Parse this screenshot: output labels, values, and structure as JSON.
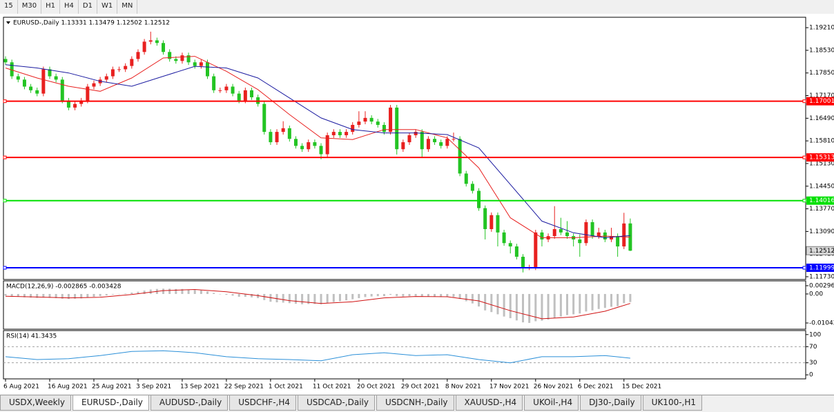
{
  "toolbar": {
    "buttons": [
      "15",
      "M30",
      "H1",
      "H4",
      "D1",
      "W1",
      "MN"
    ]
  },
  "chart_data": [
    {
      "type": "candlestick",
      "title": "EURUSD-,Daily  1.13331 1.13479 1.12502 1.12512",
      "colors": {
        "up": "#e8201f",
        "down": "#23c423"
      },
      "xlim": [
        -0.33,
        126.8
      ],
      "xticks": [
        {
          "value": 0,
          "label": "6 Aug 2021"
        },
        {
          "value": 7,
          "label": "16 Aug 2021"
        },
        {
          "value": 14,
          "label": "25 Aug 2021"
        },
        {
          "value": 21,
          "label": "3 Sep 2021"
        },
        {
          "value": 28,
          "label": "13 Sep 2021"
        },
        {
          "value": 35,
          "label": "22 Sep 2021"
        },
        {
          "value": 42,
          "label": "1 Oct 2021"
        },
        {
          "value": 49,
          "label": "11 Oct 2021"
        },
        {
          "value": 56,
          "label": "20 Oct 2021"
        },
        {
          "value": 63,
          "label": "29 Oct 2021"
        },
        {
          "value": 70,
          "label": "8 Nov 2021"
        },
        {
          "value": 77,
          "label": "17 Nov 2021"
        },
        {
          "value": 84,
          "label": "26 Nov 2021"
        },
        {
          "value": 91,
          "label": "6 Dec 2021"
        },
        {
          "value": 98,
          "label": "15 Dec 2021"
        }
      ],
      "ylim": [
        1.11647,
        1.19523
      ],
      "yticks": [
        {
          "value": 1.1921,
          "label": "1.19210"
        },
        {
          "value": 1.1853,
          "label": "1.18530"
        },
        {
          "value": 1.1785,
          "label": "1.17850"
        },
        {
          "value": 1.1717,
          "label": "1.17170"
        },
        {
          "value": 1.1649,
          "label": "1.16490"
        },
        {
          "value": 1.1581,
          "label": "1.15810"
        },
        {
          "value": 1.1513,
          "label": "1.15130"
        },
        {
          "value": 1.1445,
          "label": "1.14450"
        },
        {
          "value": 1.1377,
          "label": "1.13770"
        },
        {
          "value": 1.1309,
          "label": "1.13090"
        },
        {
          "value": 1.1241,
          "label": "1.12410"
        },
        {
          "value": 1.1173,
          "label": "1.11730"
        }
      ],
      "ohlc": [
        [
          1.1827,
          1.1835,
          1.1809,
          1.1817
        ],
        [
          1.1817,
          1.1825,
          1.1767,
          1.1775
        ],
        [
          1.1775,
          1.1783,
          1.1757,
          1.1765
        ],
        [
          1.1765,
          1.1773,
          1.1736,
          1.1744
        ],
        [
          1.1744,
          1.1752,
          1.1725,
          1.1733
        ],
        [
          1.1733,
          1.1741,
          1.1715,
          1.1723
        ],
        [
          1.1723,
          1.1804,
          1.1715,
          1.1796
        ],
        [
          1.1796,
          1.1804,
          1.1767,
          1.1775
        ],
        [
          1.1775,
          1.1783,
          1.1757,
          1.1765
        ],
        [
          1.1765,
          1.1773,
          1.1694,
          1.1702
        ],
        [
          1.1702,
          1.171,
          1.1673,
          1.1681
        ],
        [
          1.1681,
          1.17,
          1.1673,
          1.1692
        ],
        [
          1.1692,
          1.171,
          1.1684,
          1.1702
        ],
        [
          1.1702,
          1.1752,
          1.1694,
          1.1744
        ],
        [
          1.1744,
          1.1762,
          1.1736,
          1.1754
        ],
        [
          1.1754,
          1.1773,
          1.1746,
          1.1765
        ],
        [
          1.1765,
          1.1783,
          1.1757,
          1.1775
        ],
        [
          1.1775,
          1.1804,
          1.1767,
          1.1796
        ],
        [
          1.1796,
          1.1804,
          1.1788,
          1.1796
        ],
        [
          1.1796,
          1.1814,
          1.1788,
          1.1806
        ],
        [
          1.1806,
          1.1835,
          1.1798,
          1.1827
        ],
        [
          1.1827,
          1.1856,
          1.1819,
          1.1848
        ],
        [
          1.1848,
          1.1887,
          1.184,
          1.1879
        ],
        [
          1.1879,
          1.1909,
          1.1871,
          1.1883
        ],
        [
          1.1883,
          1.1891,
          1.1867,
          1.1875
        ],
        [
          1.1875,
          1.1883,
          1.184,
          1.1848
        ],
        [
          1.1848,
          1.1856,
          1.1819,
          1.1827
        ],
        [
          1.1827,
          1.1835,
          1.1813,
          1.1821
        ],
        [
          1.1821,
          1.1846,
          1.1813,
          1.1838
        ],
        [
          1.1838,
          1.1846,
          1.1809,
          1.1817
        ],
        [
          1.1817,
          1.1825,
          1.1798,
          1.1806
        ],
        [
          1.1806,
          1.1825,
          1.1798,
          1.1817
        ],
        [
          1.1817,
          1.1825,
          1.1767,
          1.1775
        ],
        [
          1.1775,
          1.1783,
          1.1725,
          1.1733
        ],
        [
          1.1733,
          1.1741,
          1.1725,
          1.1733
        ],
        [
          1.1733,
          1.1752,
          1.1725,
          1.1744
        ],
        [
          1.1744,
          1.1752,
          1.1715,
          1.1723
        ],
        [
          1.1723,
          1.1731,
          1.1694,
          1.1702
        ],
        [
          1.1702,
          1.1741,
          1.1694,
          1.1733
        ],
        [
          1.1733,
          1.1741,
          1.1704,
          1.1712
        ],
        [
          1.1712,
          1.172,
          1.1684,
          1.1692
        ],
        [
          1.1692,
          1.17,
          1.16,
          1.1608
        ],
        [
          1.1608,
          1.1616,
          1.1569,
          1.1577
        ],
        [
          1.1577,
          1.1616,
          1.1569,
          1.1608
        ],
        [
          1.1608,
          1.164,
          1.16,
          1.1619
        ],
        [
          1.1619,
          1.1627,
          1.1579,
          1.1587
        ],
        [
          1.1587,
          1.1595,
          1.1558,
          1.1566
        ],
        [
          1.1566,
          1.1574,
          1.1548,
          1.1556
        ],
        [
          1.1556,
          1.1585,
          1.1548,
          1.1577
        ],
        [
          1.1577,
          1.1585,
          1.1558,
          1.1566
        ],
        [
          1.1566,
          1.1574,
          1.1526,
          1.1541
        ],
        [
          1.1541,
          1.1606,
          1.1533,
          1.1598
        ],
        [
          1.1598,
          1.1616,
          1.159,
          1.1608
        ],
        [
          1.1608,
          1.1616,
          1.159,
          1.1598
        ],
        [
          1.1598,
          1.1616,
          1.159,
          1.1608
        ],
        [
          1.1608,
          1.1637,
          1.16,
          1.1629
        ],
        [
          1.1629,
          1.167,
          1.1621,
          1.1639
        ],
        [
          1.1639,
          1.167,
          1.1631,
          1.165
        ],
        [
          1.165,
          1.1658,
          1.1631,
          1.1639
        ],
        [
          1.1639,
          1.1647,
          1.1621,
          1.1629
        ],
        [
          1.1629,
          1.1637,
          1.16,
          1.1608
        ],
        [
          1.1608,
          1.1689,
          1.16,
          1.1681
        ],
        [
          1.1681,
          1.1689,
          1.154,
          1.1556
        ],
        [
          1.1556,
          1.1585,
          1.1548,
          1.1577
        ],
        [
          1.1577,
          1.1606,
          1.1569,
          1.1598
        ],
        [
          1.1598,
          1.1616,
          1.159,
          1.1608
        ],
        [
          1.1608,
          1.1616,
          1.153,
          1.1556
        ],
        [
          1.1556,
          1.1595,
          1.1548,
          1.1587
        ],
        [
          1.1587,
          1.1595,
          1.1569,
          1.1577
        ],
        [
          1.1577,
          1.1585,
          1.1558,
          1.1566
        ],
        [
          1.1566,
          1.1595,
          1.1558,
          1.1587
        ],
        [
          1.1587,
          1.1606,
          1.1579,
          1.1587
        ],
        [
          1.1587,
          1.1595,
          1.1475,
          1.1483
        ],
        [
          1.1483,
          1.1491,
          1.1444,
          1.1452
        ],
        [
          1.1452,
          1.146,
          1.1423,
          1.1431
        ],
        [
          1.1431,
          1.1439,
          1.1371,
          1.1379
        ],
        [
          1.1379,
          1.1387,
          1.1285,
          1.1316
        ],
        [
          1.1316,
          1.1366,
          1.1308,
          1.1358
        ],
        [
          1.1358,
          1.1366,
          1.1264,
          1.1306
        ],
        [
          1.1306,
          1.1314,
          1.1266,
          1.1274
        ],
        [
          1.1274,
          1.1282,
          1.1243,
          1.1264
        ],
        [
          1.1264,
          1.1272,
          1.1225,
          1.1233
        ],
        [
          1.1233,
          1.1241,
          1.1186,
          1.1201
        ],
        [
          1.1201,
          1.1209,
          1.1193,
          1.1201
        ],
        [
          1.1201,
          1.1314,
          1.1193,
          1.1306
        ],
        [
          1.1306,
          1.1314,
          1.1264,
          1.1285
        ],
        [
          1.1285,
          1.1303,
          1.1277,
          1.1295
        ],
        [
          1.1295,
          1.1385,
          1.1287,
          1.1316
        ],
        [
          1.1316,
          1.135,
          1.1298,
          1.1306
        ],
        [
          1.1306,
          1.134,
          1.1287,
          1.1295
        ],
        [
          1.1295,
          1.1303,
          1.1264,
          1.1285
        ],
        [
          1.1285,
          1.13,
          1.1233,
          1.1274
        ],
        [
          1.1274,
          1.1345,
          1.1266,
          1.1337
        ],
        [
          1.1337,
          1.1345,
          1.1287,
          1.1295
        ],
        [
          1.1295,
          1.132,
          1.1287,
          1.1306
        ],
        [
          1.1306,
          1.1314,
          1.1277,
          1.1285
        ],
        [
          1.1285,
          1.132,
          1.1277,
          1.1295
        ],
        [
          1.1295,
          1.1303,
          1.1233,
          1.1264
        ],
        [
          1.1264,
          1.1365,
          1.1256,
          1.1333
        ],
        [
          1.13331,
          1.13479,
          1.12502,
          1.12512
        ]
      ],
      "lines": [
        {
          "color": "#e8201f",
          "x": [
            0,
            5,
            10,
            15,
            20,
            25,
            30,
            35,
            40,
            45,
            50,
            55,
            60,
            65,
            70,
            75,
            80,
            85,
            90,
            95,
            99
          ],
          "values": [
            1.18,
            1.177,
            1.1745,
            1.173,
            1.177,
            1.183,
            1.1835,
            1.179,
            1.1735,
            1.166,
            1.159,
            1.1585,
            1.1615,
            1.1615,
            1.159,
            1.15,
            1.135,
            1.129,
            1.129,
            1.1295,
            1.1292
          ]
        },
        {
          "color": "#1a1aa0",
          "x": [
            0,
            5,
            10,
            15,
            20,
            25,
            30,
            35,
            40,
            45,
            50,
            55,
            60,
            65,
            70,
            75,
            80,
            85,
            90,
            95,
            99
          ],
          "values": [
            1.181,
            1.18,
            1.1785,
            1.176,
            1.1745,
            1.1775,
            1.1805,
            1.18,
            1.177,
            1.171,
            1.165,
            1.1615,
            1.1605,
            1.1605,
            1.16,
            1.156,
            1.145,
            1.134,
            1.1305,
            1.129,
            1.1297
          ]
        }
      ],
      "levels": [
        {
          "value": 1.17001,
          "color": "#ff0000"
        },
        {
          "value": 1.15313,
          "color": "#ff0000"
        },
        {
          "value": 1.14016,
          "color": "#00e000"
        },
        {
          "value": 1.11999,
          "color": "#0000ff"
        }
      ],
      "last_price": 1.12512
    },
    {
      "type": "macd",
      "title": "MACD(12,26,9) -0.002865 -0.003428",
      "color": "#c0c0c0",
      "values": [
        -0.0006,
        -0.0008,
        -0.001,
        -0.0012,
        -0.0013,
        -0.0014,
        -0.0013,
        -0.0014,
        -0.0015,
        -0.0017,
        -0.0018,
        -0.0017,
        -0.0016,
        -0.0013,
        -0.001,
        -0.0008,
        -0.0005,
        -0.0002,
        0,
        0.0002,
        0.0005,
        0.0008,
        0.0012,
        0.0016,
        0.0018,
        0.0019,
        0.0019,
        0.0018,
        0.0018,
        0.0016,
        0.0014,
        0.0013,
        0.0009,
        0.0004,
        0,
        -0.0003,
        -0.0006,
        -0.001,
        -0.001,
        -0.0012,
        -0.0015,
        -0.0022,
        -0.0028,
        -0.003,
        -0.0031,
        -0.0033,
        -0.0035,
        -0.0037,
        -0.0036,
        -0.0036,
        -0.0037,
        -0.0033,
        -0.0029,
        -0.0026,
        -0.0023,
        -0.0019,
        -0.0015,
        -0.0011,
        -0.0009,
        -0.0008,
        -0.0008,
        -0.0003,
        -0.0008,
        -0.0009,
        -0.0008,
        -0.0007,
        -0.001,
        -0.001,
        -0.001,
        -0.0011,
        -0.0011,
        -0.0011,
        -0.0018,
        -0.0026,
        -0.0034,
        -0.0045,
        -0.0059,
        -0.0065,
        -0.0073,
        -0.0081,
        -0.0087,
        -0.0095,
        -0.0102,
        -0.0104,
        -0.0098,
        -0.0096,
        -0.0092,
        -0.0086,
        -0.0081,
        -0.0076,
        -0.0073,
        -0.007,
        -0.0063,
        -0.0059,
        -0.0054,
        -0.005,
        -0.0046,
        -0.0044,
        -0.0033,
        -0.0029
      ],
      "signal": {
        "color": "#d01010",
        "x": [
          0,
          5,
          10,
          15,
          20,
          25,
          30,
          35,
          40,
          45,
          50,
          55,
          60,
          65,
          70,
          75,
          80,
          85,
          90,
          95,
          99
        ],
        "values": [
          -0.0008,
          -0.0011,
          -0.0014,
          -0.0012,
          -0.0002,
          0.0012,
          0.0016,
          0.0008,
          -0.0006,
          -0.0024,
          -0.0034,
          -0.0028,
          -0.0014,
          -0.0009,
          -0.001,
          -0.0025,
          -0.006,
          -0.0089,
          -0.0083,
          -0.0062,
          -0.0034
        ]
      },
      "ylim": [
        -0.01265,
        0.0047
      ],
      "yticks": [
        0.002966,
        {
          "value": 0,
          "label": "0.00"
        },
        -0.01042
      ]
    },
    {
      "type": "line",
      "title": "RSI(14) 41.3435",
      "color": "#2a8fd8",
      "x": [
        0,
        5,
        10,
        15,
        20,
        25,
        30,
        35,
        40,
        45,
        50,
        55,
        60,
        65,
        70,
        75,
        80,
        85,
        90,
        95,
        99
      ],
      "values": [
        45,
        38,
        40,
        48,
        58,
        60,
        55,
        45,
        40,
        38,
        35,
        50,
        55,
        48,
        50,
        38,
        30,
        45,
        45,
        48,
        41.3435
      ],
      "ylim": [
        -10,
        110
      ],
      "yticks": [
        100,
        70,
        30,
        0
      ],
      "levels": [
        70,
        30
      ]
    }
  ],
  "tabs": {
    "items": [
      "USDX,Weekly",
      "EURUSD-,Daily",
      "AUDUSD-,Daily",
      "USDCHF-,H4",
      "USDCAD-,Daily",
      "USDCNH-,Daily",
      "XAUUSD-,H4",
      "UKOil-,H4",
      "DJ30-,Daily",
      "UK100-,H1"
    ],
    "active": 1
  }
}
